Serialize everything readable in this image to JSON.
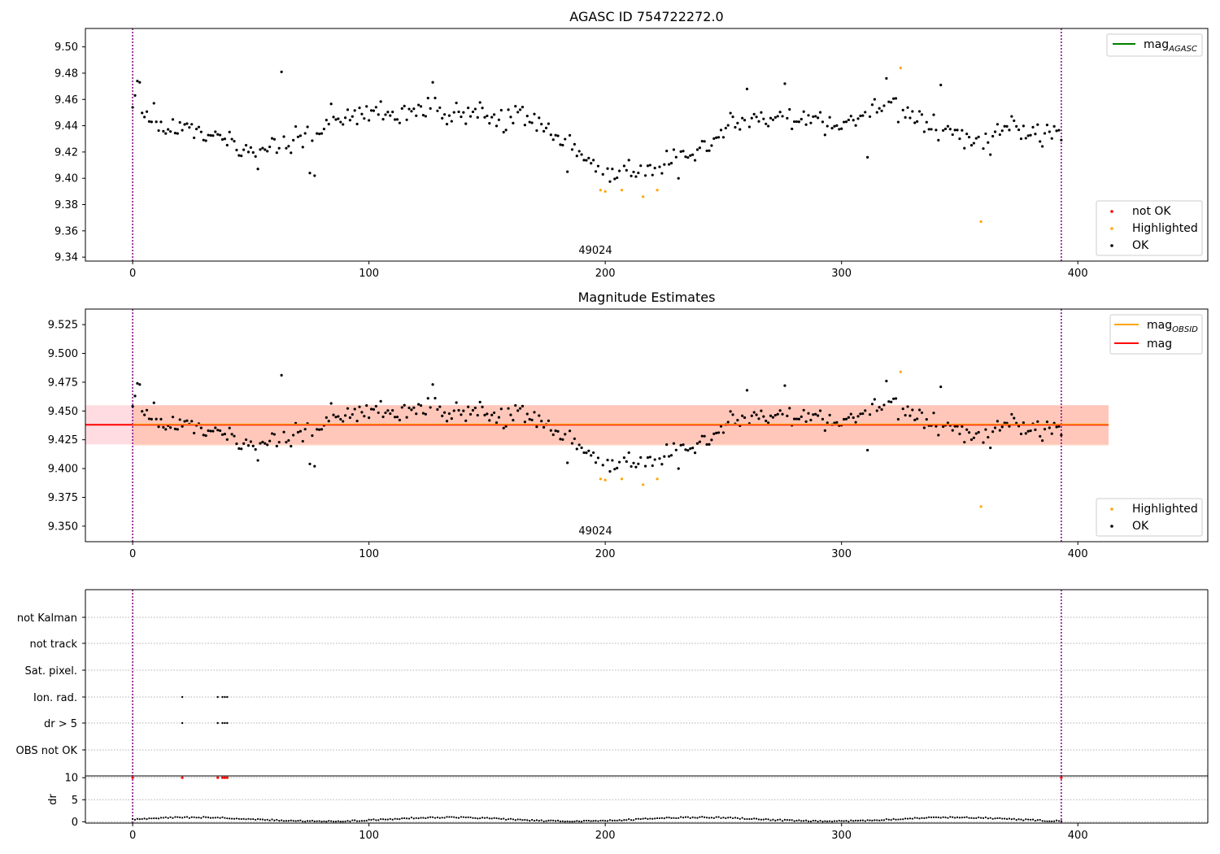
{
  "colors": {
    "ok": "#000000",
    "highlighted": "#ffa500",
    "not_ok": "#ff0000",
    "mag_agasc": "#008000",
    "mag_obsid": "#ffa500",
    "mag": "#ff0000",
    "vline": "#800080",
    "band_mag": "#ffc0cb",
    "band_obsid": "#ffa070"
  },
  "chart_data": [
    {
      "id": "agasc",
      "type": "scatter",
      "title": "AGASC ID 754722272.0",
      "xlim": [
        -20,
        455
      ],
      "ylim": [
        9.337,
        9.514
      ],
      "x_ticks": [
        0,
        100,
        200,
        300,
        400
      ],
      "y_ticks": [
        9.34,
        9.36,
        9.38,
        9.4,
        9.42,
        9.44,
        9.46,
        9.48,
        9.5
      ],
      "y_tick_labels": [
        "9.34",
        "9.36",
        "9.38",
        "9.40",
        "9.42",
        "9.44",
        "9.46",
        "9.48",
        "9.50"
      ],
      "obsid_label": "49024",
      "obsid_label_x": 197,
      "vlines": [
        0,
        393
      ],
      "legend_upper": [
        {
          "label": "mag",
          "subscript": "AGASC",
          "color": "#008000"
        }
      ],
      "legend_lower": [
        {
          "label": "not OK",
          "color": "#ff0000"
        },
        {
          "label": "Highlighted",
          "color": "#ffa500"
        },
        {
          "label": "OK",
          "color": "#000000"
        }
      ],
      "highlighted_points": [
        [
          198,
          9.391
        ],
        [
          200,
          9.39
        ],
        [
          207,
          9.391
        ],
        [
          216,
          9.386
        ],
        [
          222,
          9.391
        ],
        [
          325,
          9.484
        ],
        [
          359,
          9.367
        ]
      ]
    },
    {
      "id": "estimates",
      "type": "scatter",
      "title": "Magnitude Estimates",
      "xlim": [
        -20,
        455
      ],
      "ylim": [
        9.3365,
        9.5385
      ],
      "x_ticks": [
        0,
        100,
        200,
        300,
        400
      ],
      "y_ticks": [
        9.35,
        9.375,
        9.4,
        9.425,
        9.45,
        9.475,
        9.5,
        9.525
      ],
      "y_tick_labels": [
        "9.350",
        "9.375",
        "9.400",
        "9.425",
        "9.450",
        "9.475",
        "9.500",
        "9.525"
      ],
      "obsid_label": "49024",
      "obsid_label_x": 197,
      "vlines": [
        0,
        393
      ],
      "mag": 9.438,
      "mag_band": [
        9.421,
        9.455
      ],
      "mag_range_x": [
        -20,
        413
      ],
      "mag_obsid": 9.4385,
      "mag_obsid_band": [
        9.42,
        9.455
      ],
      "mag_obsid_range_x": [
        0,
        413
      ],
      "legend_upper": [
        {
          "label": "mag",
          "subscript": "OBSID",
          "color": "#ffa500"
        },
        {
          "label": "mag",
          "subscript": "",
          "color": "#ff0000"
        }
      ],
      "legend_lower": [
        {
          "label": "Highlighted",
          "color": "#ffa500"
        },
        {
          "label": "OK",
          "color": "#000000"
        }
      ]
    },
    {
      "id": "flags",
      "type": "scatter",
      "xlim": [
        -20,
        455
      ],
      "x_ticks": [
        0,
        100,
        200,
        300,
        400
      ],
      "categories": [
        "not Kalman",
        "not track",
        "Sat. pixel.",
        "Ion. rad.",
        "dr > 5",
        "OBS not OK"
      ],
      "ion_rad_x": [
        21,
        36,
        38,
        39,
        40
      ],
      "dr_gt_5_x": [
        21,
        36,
        38,
        39,
        40
      ],
      "vlines": [
        0,
        393
      ]
    },
    {
      "id": "dr",
      "type": "scatter",
      "ylabel": "dr",
      "ylim": [
        -0.3,
        10.4
      ],
      "y_ticks": [
        0,
        5,
        10
      ],
      "y_tick_labels": [
        "0",
        "5",
        "10"
      ],
      "xlim": [
        -20,
        455
      ],
      "x_ticks": [
        0,
        100,
        200,
        300,
        400
      ],
      "x_tick_labels": [
        "0",
        "100",
        "200",
        "300",
        "400"
      ],
      "red_points_x": [
        0,
        21,
        36,
        38,
        39,
        40,
        393
      ],
      "red_points_y": 10,
      "vlines": [
        0,
        393
      ]
    }
  ]
}
